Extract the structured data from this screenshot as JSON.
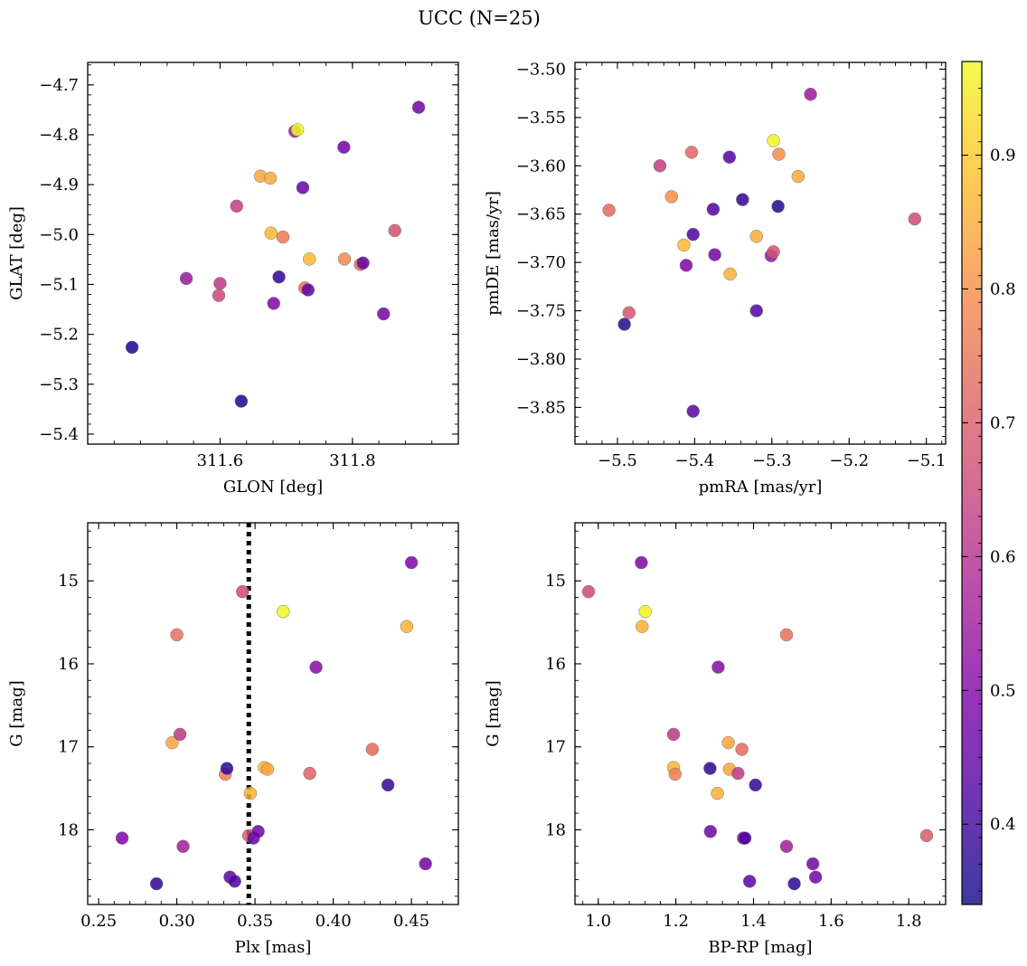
{
  "figure": {
    "title": "UCC (N=25)"
  },
  "colorbar": {
    "colormap": "plasma",
    "vmin": 0.34,
    "vmax": 0.97,
    "ticks": [
      0.4,
      0.5,
      0.6,
      0.7,
      0.8,
      0.9
    ],
    "tick_labels": [
      "0.4",
      "0.5",
      "0.6",
      "0.7",
      "0.8",
      "0.9"
    ]
  },
  "chart_data": [
    {
      "type": "scatter",
      "id": "glon-glat",
      "xlabel": "GLON [deg]",
      "ylabel": "GLAT [deg]",
      "xlim": [
        311.4,
        311.96
      ],
      "ylim": [
        -5.42,
        -4.655
      ],
      "y_inverted": false,
      "xticks": [
        311.6,
        311.8
      ],
      "xtick_labels": [
        "311.6",
        "311.8"
      ],
      "yticks": [
        -5.4,
        -5.3,
        -5.2,
        -5.1,
        -5.0,
        -4.9,
        -4.8,
        -4.7
      ],
      "ytick_labels": [
        "−5.4",
        "−5.3",
        "−5.2",
        "−5.1",
        "−5.0",
        "−4.9",
        "−4.8",
        "−4.7"
      ],
      "points": [
        {
          "x": 311.467,
          "y": -5.226,
          "c": 0.36
        },
        {
          "x": 311.549,
          "y": -5.088,
          "c": 0.54
        },
        {
          "x": 311.6,
          "y": -5.098,
          "c": 0.62
        },
        {
          "x": 311.598,
          "y": -5.122,
          "c": 0.65
        },
        {
          "x": 311.625,
          "y": -4.943,
          "c": 0.63
        },
        {
          "x": 311.632,
          "y": -5.334,
          "c": 0.36
        },
        {
          "x": 311.661,
          "y": -4.883,
          "c": 0.84
        },
        {
          "x": 311.676,
          "y": -4.887,
          "c": 0.85
        },
        {
          "x": 311.677,
          "y": -4.997,
          "c": 0.87
        },
        {
          "x": 311.681,
          "y": -5.138,
          "c": 0.5
        },
        {
          "x": 311.689,
          "y": -5.085,
          "c": 0.38
        },
        {
          "x": 311.695,
          "y": -5.005,
          "c": 0.76
        },
        {
          "x": 311.713,
          "y": -4.793,
          "c": 0.55
        },
        {
          "x": 311.717,
          "y": -4.79,
          "c": 0.97
        },
        {
          "x": 311.725,
          "y": -4.906,
          "c": 0.45
        },
        {
          "x": 311.728,
          "y": -5.107,
          "c": 0.74
        },
        {
          "x": 311.733,
          "y": -5.111,
          "c": 0.44
        },
        {
          "x": 311.735,
          "y": -5.049,
          "c": 0.87
        },
        {
          "x": 311.787,
          "y": -4.825,
          "c": 0.47
        },
        {
          "x": 311.788,
          "y": -5.049,
          "c": 0.79
        },
        {
          "x": 311.812,
          "y": -5.06,
          "c": 0.73
        },
        {
          "x": 311.816,
          "y": -5.057,
          "c": 0.45
        },
        {
          "x": 311.847,
          "y": -5.159,
          "c": 0.48
        },
        {
          "x": 311.864,
          "y": -4.992,
          "c": 0.67
        },
        {
          "x": 311.9,
          "y": -4.745,
          "c": 0.47
        }
      ]
    },
    {
      "type": "scatter",
      "id": "pmra-pmde",
      "xlabel": "pmRA [mas/yr]",
      "ylabel": "pmDE [mas/yr]",
      "xlim": [
        -5.555,
        -5.075
      ],
      "ylim": [
        -3.888,
        -3.493
      ],
      "y_inverted": false,
      "xticks": [
        -5.5,
        -5.4,
        -5.3,
        -5.2,
        -5.1
      ],
      "xtick_labels": [
        "−5.5",
        "−5.4",
        "−5.3",
        "−5.2",
        "−5.1"
      ],
      "yticks": [
        -3.85,
        -3.8,
        -3.75,
        -3.7,
        -3.65,
        -3.6,
        -3.55,
        -3.5
      ],
      "ytick_labels": [
        "−3.85",
        "−3.80",
        "−3.75",
        "−3.70",
        "−3.65",
        "−3.60",
        "−3.55",
        "−3.50"
      ],
      "points": [
        {
          "x": -5.511,
          "y": -3.646,
          "c": 0.73
        },
        {
          "x": -5.491,
          "y": -3.764,
          "c": 0.37
        },
        {
          "x": -5.485,
          "y": -3.752,
          "c": 0.68
        },
        {
          "x": -5.445,
          "y": -3.6,
          "c": 0.63
        },
        {
          "x": -5.43,
          "y": -3.632,
          "c": 0.8
        },
        {
          "x": -5.414,
          "y": -3.682,
          "c": 0.87
        },
        {
          "x": -5.411,
          "y": -3.703,
          "c": 0.5
        },
        {
          "x": -5.404,
          "y": -3.586,
          "c": 0.72
        },
        {
          "x": -5.402,
          "y": -3.671,
          "c": 0.42
        },
        {
          "x": -5.402,
          "y": -3.854,
          "c": 0.44
        },
        {
          "x": -5.376,
          "y": -3.645,
          "c": 0.42
        },
        {
          "x": -5.374,
          "y": -3.692,
          "c": 0.48
        },
        {
          "x": -5.355,
          "y": -3.591,
          "c": 0.43
        },
        {
          "x": -5.354,
          "y": -3.712,
          "c": 0.86
        },
        {
          "x": -5.338,
          "y": -3.635,
          "c": 0.38
        },
        {
          "x": -5.32,
          "y": -3.673,
          "c": 0.85
        },
        {
          "x": -5.32,
          "y": -3.75,
          "c": 0.42
        },
        {
          "x": -5.301,
          "y": -3.693,
          "c": 0.53
        },
        {
          "x": -5.298,
          "y": -3.689,
          "c": 0.68
        },
        {
          "x": -5.298,
          "y": -3.574,
          "c": 0.96
        },
        {
          "x": -5.292,
          "y": -3.642,
          "c": 0.37
        },
        {
          "x": -5.291,
          "y": -3.588,
          "c": 0.8
        },
        {
          "x": -5.266,
          "y": -3.611,
          "c": 0.85
        },
        {
          "x": -5.25,
          "y": -3.526,
          "c": 0.55
        },
        {
          "x": -5.115,
          "y": -3.655,
          "c": 0.66
        }
      ]
    },
    {
      "type": "scatter",
      "id": "plx-g",
      "xlabel": "Plx [mas]",
      "ylabel": "G [mag]",
      "xlim": [
        0.243,
        0.48
      ],
      "ylim": [
        18.9,
        14.3
      ],
      "y_inverted": true,
      "xticks": [
        0.25,
        0.3,
        0.35,
        0.4,
        0.45
      ],
      "xtick_labels": [
        "0.25",
        "0.30",
        "0.35",
        "0.40",
        "0.45"
      ],
      "yticks": [
        15,
        16,
        17,
        18
      ],
      "ytick_labels": [
        "15",
        "16",
        "17",
        "18"
      ],
      "vline": {
        "x": 0.346,
        "style": "dotted",
        "color": "#000000"
      },
      "points": [
        {
          "x": 0.265,
          "y": 18.1,
          "c": 0.5
        },
        {
          "x": 0.287,
          "y": 18.65,
          "c": 0.38
        },
        {
          "x": 0.297,
          "y": 16.95,
          "c": 0.84
        },
        {
          "x": 0.3,
          "y": 15.65,
          "c": 0.74
        },
        {
          "x": 0.302,
          "y": 16.85,
          "c": 0.62
        },
        {
          "x": 0.304,
          "y": 18.2,
          "c": 0.56
        },
        {
          "x": 0.331,
          "y": 17.33,
          "c": 0.77
        },
        {
          "x": 0.332,
          "y": 17.26,
          "c": 0.38
        },
        {
          "x": 0.334,
          "y": 18.57,
          "c": 0.44
        },
        {
          "x": 0.337,
          "y": 18.62,
          "c": 0.42
        },
        {
          "x": 0.342,
          "y": 15.13,
          "c": 0.66
        },
        {
          "x": 0.346,
          "y": 18.07,
          "c": 0.7
        },
        {
          "x": 0.347,
          "y": 17.56,
          "c": 0.86
        },
        {
          "x": 0.349,
          "y": 18.1,
          "c": 0.46
        },
        {
          "x": 0.352,
          "y": 18.02,
          "c": 0.47
        },
        {
          "x": 0.356,
          "y": 17.25,
          "c": 0.87
        },
        {
          "x": 0.358,
          "y": 17.27,
          "c": 0.84
        },
        {
          "x": 0.368,
          "y": 15.37,
          "c": 0.96
        },
        {
          "x": 0.385,
          "y": 17.32,
          "c": 0.71
        },
        {
          "x": 0.389,
          "y": 16.04,
          "c": 0.51
        },
        {
          "x": 0.425,
          "y": 17.03,
          "c": 0.73
        },
        {
          "x": 0.435,
          "y": 17.46,
          "c": 0.39
        },
        {
          "x": 0.447,
          "y": 15.55,
          "c": 0.86
        },
        {
          "x": 0.45,
          "y": 14.78,
          "c": 0.5
        },
        {
          "x": 0.459,
          "y": 18.41,
          "c": 0.48
        }
      ]
    },
    {
      "type": "scatter",
      "id": "bprp-g",
      "xlabel": "BP-RP [mag]",
      "ylabel": "G [mag]",
      "xlim": [
        0.94,
        1.895
      ],
      "ylim": [
        18.9,
        14.3
      ],
      "y_inverted": true,
      "xticks": [
        1.0,
        1.2,
        1.4,
        1.6,
        1.8
      ],
      "xtick_labels": [
        "1.0",
        "1.2",
        "1.4",
        "1.6",
        "1.8"
      ],
      "yticks": [
        15,
        16,
        17,
        18
      ],
      "ytick_labels": [
        "15",
        "16",
        "17",
        "18"
      ],
      "points": [
        {
          "x": 0.975,
          "y": 15.13,
          "c": 0.66
        },
        {
          "x": 1.111,
          "y": 14.78,
          "c": 0.5
        },
        {
          "x": 1.113,
          "y": 15.55,
          "c": 0.86
        },
        {
          "x": 1.121,
          "y": 15.37,
          "c": 0.96
        },
        {
          "x": 1.194,
          "y": 16.85,
          "c": 0.62
        },
        {
          "x": 1.194,
          "y": 17.25,
          "c": 0.87
        },
        {
          "x": 1.198,
          "y": 17.33,
          "c": 0.77
        },
        {
          "x": 1.288,
          "y": 17.26,
          "c": 0.38
        },
        {
          "x": 1.289,
          "y": 18.02,
          "c": 0.47
        },
        {
          "x": 1.307,
          "y": 17.56,
          "c": 0.86
        },
        {
          "x": 1.309,
          "y": 16.04,
          "c": 0.51
        },
        {
          "x": 1.335,
          "y": 16.95,
          "c": 0.84
        },
        {
          "x": 1.338,
          "y": 17.27,
          "c": 0.84
        },
        {
          "x": 1.36,
          "y": 17.32,
          "c": 0.62
        },
        {
          "x": 1.37,
          "y": 17.03,
          "c": 0.73
        },
        {
          "x": 1.374,
          "y": 18.1,
          "c": 0.46
        },
        {
          "x": 1.378,
          "y": 18.1,
          "c": 0.42
        },
        {
          "x": 1.39,
          "y": 18.62,
          "c": 0.44
        },
        {
          "x": 1.405,
          "y": 17.46,
          "c": 0.39
        },
        {
          "x": 1.485,
          "y": 18.2,
          "c": 0.56
        },
        {
          "x": 1.485,
          "y": 15.65,
          "c": 0.74
        },
        {
          "x": 1.505,
          "y": 18.65,
          "c": 0.38
        },
        {
          "x": 1.553,
          "y": 18.41,
          "c": 0.48
        },
        {
          "x": 1.56,
          "y": 18.57,
          "c": 0.47
        },
        {
          "x": 1.846,
          "y": 18.07,
          "c": 0.7
        }
      ]
    }
  ]
}
